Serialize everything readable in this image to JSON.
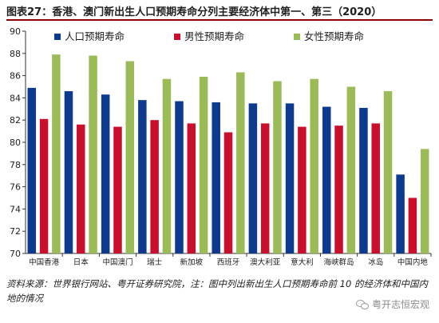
{
  "figure": {
    "title": "图表27：香港、澳门新出生人口预期寿命分列主要经济体中第一、第三（2020）",
    "source": "资料来源：世界银行网站、粤开证券研究院，注：图中列出新出生人口预期寿命前 10 的经济体和中国内地的情况",
    "watermark": "粤开志恒宏观"
  },
  "chart_data": {
    "type": "bar",
    "title": "",
    "xlabel": "",
    "ylabel": "",
    "ylim": [
      70,
      90
    ],
    "yticks": [
      70,
      72,
      74,
      76,
      78,
      80,
      82,
      84,
      86,
      88,
      90
    ],
    "grid": false,
    "legend": "top",
    "categories": [
      "中国香港",
      "日本",
      "中国澳门",
      "瑞士",
      "新加坡",
      "西班牙",
      "澳大利亚",
      "意大利",
      "海峡群岛",
      "冰岛",
      "中国内地"
    ],
    "series": [
      {
        "name": "人口预期寿命",
        "color": "#0d3a8c",
        "values": [
          84.9,
          84.6,
          84.3,
          83.8,
          83.7,
          83.6,
          83.5,
          83.5,
          83.2,
          83.1,
          77.1
        ]
      },
      {
        "name": "男性预期寿命",
        "color": "#c8102e",
        "values": [
          82.1,
          81.6,
          81.4,
          82.0,
          81.7,
          80.9,
          81.7,
          81.4,
          81.5,
          81.7,
          75.0
        ]
      },
      {
        "name": "女性预期寿命",
        "color": "#9bbb59",
        "values": [
          87.9,
          87.8,
          87.3,
          85.7,
          85.9,
          86.3,
          85.5,
          85.7,
          85.0,
          84.6,
          79.4
        ]
      }
    ]
  }
}
